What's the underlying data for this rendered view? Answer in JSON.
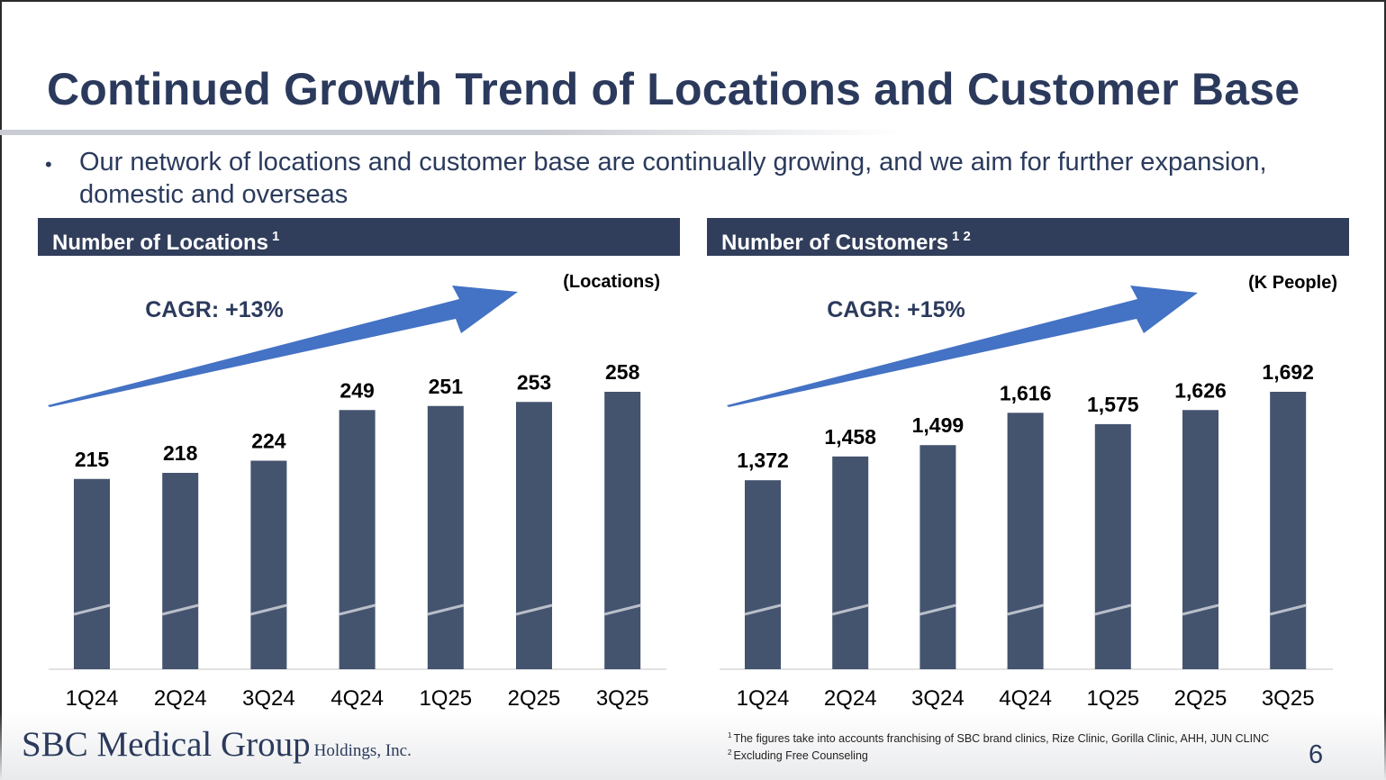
{
  "slide": {
    "title": "Continued Growth Trend of Locations and Customer Base",
    "bullet_marker": "•",
    "bullet": "Our network of locations and customer base are continually growing, and we aim for further expansion, domestic and overseas",
    "page_number": "6"
  },
  "logo": {
    "main": "SBC Medical Group",
    "sub": "Holdings, Inc."
  },
  "footnotes": [
    {
      "mark": "1",
      "text": "The figures take into accounts franchising of SBC brand clinics, Rize Clinic, Gorilla Clinic, AHH, JUN CLINC"
    },
    {
      "mark": "2",
      "text": "Excluding Free Counseling"
    }
  ],
  "colors": {
    "bar": "#44536e",
    "header": "#313e5b",
    "arrow": "#4472c4",
    "title": "#2b3a5c"
  },
  "chart_data": [
    {
      "type": "bar",
      "title": "Number of Locations",
      "title_sup": "1",
      "unit": "(Locations)",
      "annotation": "CAGR: +13%",
      "categories": [
        "1Q24",
        "2Q24",
        "3Q24",
        "4Q24",
        "1Q25",
        "2Q25",
        "3Q25"
      ],
      "values": [
        215,
        218,
        224,
        249,
        251,
        253,
        258
      ],
      "value_labels": [
        "215",
        "218",
        "224",
        "249",
        "251",
        "253",
        "258"
      ],
      "axis_break": true,
      "ylabel": "",
      "xlabel": ""
    },
    {
      "type": "bar",
      "title": "Number of Customers",
      "title_sup": "1 2",
      "unit": "(K People)",
      "annotation": "CAGR: +15%",
      "categories": [
        "1Q24",
        "2Q24",
        "3Q24",
        "4Q24",
        "1Q25",
        "2Q25",
        "3Q25"
      ],
      "values": [
        1372,
        1458,
        1499,
        1616,
        1575,
        1626,
        1692
      ],
      "value_labels": [
        "1,372",
        "1,458",
        "1,499",
        "1,616",
        "1,575",
        "1,626",
        "1,692"
      ],
      "axis_break": true,
      "ylabel": "",
      "xlabel": ""
    }
  ]
}
